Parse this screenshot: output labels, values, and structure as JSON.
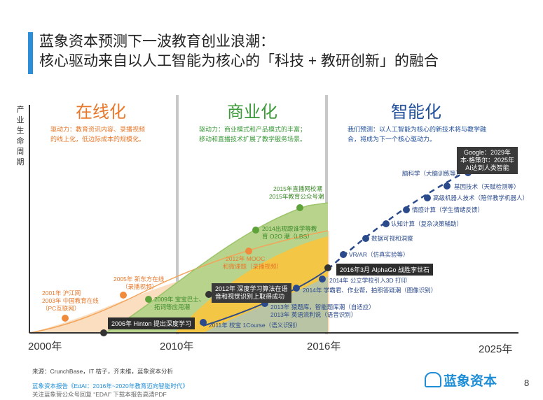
{
  "title": {
    "line1": "蓝象资本预测下一波教育创业浪潮：",
    "line2": "核心驱动来自以人工智能为核心的「科技 + 教研创新」的融合"
  },
  "y_axis_label": "产业生命周期",
  "phases": [
    {
      "name": "在线化",
      "color": "#e8782a",
      "desc": [
        "驱动力：教育资讯内容、录播视频",
        "的线上化，低边际成本的规模化。"
      ]
    },
    {
      "name": "商业化",
      "color": "#3c9a3a",
      "desc": [
        "驱动力：商业模式和产品模式的丰富；",
        "移动和直播技术扩展了教学服务场景。"
      ]
    },
    {
      "name": "智能化",
      "color": "#1f4e9b",
      "desc": [
        "我们预测：以人工智能为核心的新技术将与教学融",
        "合，将成为下一个核心驱动力。"
      ]
    }
  ],
  "years": [
    "2000年",
    "2010年",
    "2016年",
    "2025年"
  ],
  "online_events": [
    {
      "lines": [
        "2001年 沪江网",
        "2003年 中国教育在线",
        "（PC互联网）"
      ]
    },
    {
      "lines": [
        "2005年 新东方在线",
        "（录播视频）"
      ]
    },
    {
      "lines": [
        "2012年 MOOC",
        "和微课题（录播视频）"
      ]
    }
  ],
  "commerce_events": [
    {
      "lines": [
        "2009年 宝宝巴士、",
        "拓词等应用潮"
      ]
    },
    {
      "lines": [
        "2014出现跟谁学等教",
        "育 O2O 潮（LBS）"
      ]
    },
    {
      "lines": [
        "2015年直播网校潮",
        "2015年教育公众号潮"
      ]
    }
  ],
  "ai_early_events": [
    {
      "text": "2011年 校宝 1Course（语义识别）"
    },
    {
      "lines": [
        "2013年 猿题库，智能题库潮（自适应）",
        "2013年 英语流利说（语音识别）"
      ]
    },
    {
      "text": "2014年 学霸君、作业帮，拍照答疑潮（图像识别）"
    },
    {
      "text": "2014年 公立学校引入3D 打印"
    }
  ],
  "ai_future": [
    {
      "text": "VR/AR（仿真实验等）"
    },
    {
      "text": "数据可视和洞察"
    },
    {
      "text": "认知计算（复杂决策辅助）"
    },
    {
      "text": "情感计算（学生情绪反馈）"
    },
    {
      "text": "高级机器人技术（陪伴教学机器人）"
    },
    {
      "text": "基因技术（天赋检测等）"
    },
    {
      "text": "脑科学（大脑训练等）"
    }
  ],
  "milestones": {
    "hinton": "2006年 Hinton 提出深度学习",
    "deep_learning": [
      "2012年 深度学习算法在语",
      "音和视觉识别上取得成功"
    ],
    "alphago": "2016年3月 AlphaGo 战胜李世石",
    "forecast": [
      "Google：2029年",
      "本·格策尔：2025年",
      "AI达到人类智能"
    ]
  },
  "colors": {
    "online_fill": "#fbd9b8",
    "online_accent": "#e8782a",
    "commerce_fill": "#b8d48c",
    "yellow_fill": "#f5c542",
    "ai_fill": "#b9c4a4",
    "ai_accent": "#2a4a8c",
    "brand_blue": "#1f8ed6",
    "divider": "#bfbfbf"
  },
  "footer": {
    "source": "来源：CrunchBase，IT 桔子，齐未维，蓝象资本分析",
    "report": "蓝象资本报告《EdAI：2016年~2020年教育迈向智能时代》",
    "follow": "关注蓝象营公众号回复 “EDAI” 下载本报告高清PDF",
    "logo": "蓝象资本",
    "page": "8"
  }
}
